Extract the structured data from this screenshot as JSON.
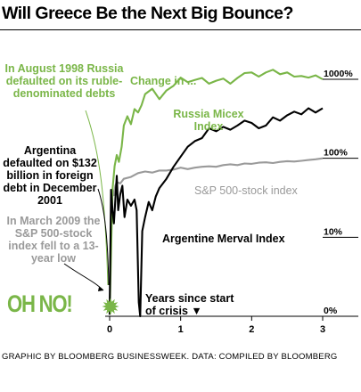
{
  "title": "Will Greece Be the Next Big Bounce?",
  "credit": "GRAPHIC BY BLOOMBERG BUSINESSWEEK. DATA: COMPILED BY BLOOMBERG",
  "annotations": {
    "russia": "In August 1998 Russia defaulted on its ruble-denominated debts",
    "argentina": "Argentina defaulted on  $132 billion in foreign debt in December 2001",
    "sp500": "In March 2009 the S&P 500-stock index fell to a 13-year low",
    "oh_no": "OH NO!"
  },
  "labels": {
    "change": "Change in ...",
    "micex": "Russia Micex Index",
    "sp500": "S&P 500-stock index",
    "merval": "Argentine Merval Index",
    "years": "Years since start of crisis ▼"
  },
  "colors": {
    "micex": "#7ab648",
    "sp500": "#9a9a9a",
    "merval": "#000000",
    "axis": "#000000"
  },
  "chart_data": {
    "type": "line",
    "title": "Will Greece Be the Next Big Bounce?",
    "xlabel": "Years since start of crisis",
    "ylabel": "Change in ...",
    "y_scale": "log",
    "xlim": [
      0,
      3
    ],
    "ylim": [
      1,
      1000
    ],
    "x_ticks": [
      0,
      1,
      2,
      3
    ],
    "y_ticks": [
      {
        "value": 1,
        "label": "0%"
      },
      {
        "value": 10,
        "label": "10%"
      },
      {
        "value": 100,
        "label": "100%"
      },
      {
        "value": 1000,
        "label": "1000%"
      }
    ],
    "grid": false,
    "series": [
      {
        "name": "Russia Micex Index",
        "color": "#7ab648",
        "x": [
          0,
          0.04,
          0.07,
          0.1,
          0.13,
          0.17,
          0.2,
          0.25,
          0.3,
          0.35,
          0.4,
          0.45,
          0.5,
          0.6,
          0.7,
          0.8,
          0.9,
          1.0,
          1.1,
          1.2,
          1.3,
          1.4,
          1.5,
          1.6,
          1.7,
          1.8,
          1.9,
          2.0,
          2.1,
          2.2,
          2.3,
          2.4,
          2.5,
          2.6,
          2.7,
          2.8,
          2.9,
          3.0
        ],
        "y": [
          1.05,
          40,
          80,
          110,
          90,
          140,
          260,
          340,
          270,
          420,
          380,
          470,
          650,
          760,
          560,
          720,
          830,
          1050,
          920,
          980,
          1040,
          880,
          960,
          1020,
          880,
          1040,
          1200,
          1220,
          1080,
          1220,
          1320,
          1160,
          1220,
          1080,
          1100,
          1050,
          1120,
          1000
        ]
      },
      {
        "name": "S&P 500-stock index",
        "color": "#9a9a9a",
        "x": [
          0,
          0.02,
          0.04,
          0.06,
          0.08,
          0.1,
          0.15,
          0.2,
          0.3,
          0.4,
          0.5,
          0.6,
          0.7,
          0.8,
          0.9,
          1.0,
          1.1,
          1.2,
          1.3,
          1.4,
          1.5,
          1.6,
          1.7,
          1.8,
          1.9,
          2.0,
          2.1,
          2.2,
          2.3,
          2.4,
          2.5,
          2.6,
          2.7,
          2.8,
          2.9,
          3.0
        ],
        "y": [
          1.05,
          25,
          40,
          34,
          45,
          50,
          48,
          55,
          58,
          65,
          68,
          66,
          70,
          70,
          72,
          76,
          73,
          76,
          78,
          79,
          78,
          82,
          84,
          82,
          86,
          85,
          88,
          89,
          87,
          90,
          92,
          91,
          93,
          95,
          97,
          100
        ]
      },
      {
        "name": "Argentine Merval Index",
        "color": "#000000",
        "x": [
          0,
          0.02,
          0.04,
          0.06,
          0.08,
          0.1,
          0.12,
          0.15,
          0.18,
          0.21,
          0.25,
          0.3,
          0.35,
          0.38,
          0.41,
          0.43,
          0.46,
          0.5,
          0.55,
          0.6,
          0.65,
          0.7,
          0.8,
          0.9,
          1.0,
          1.1,
          1.2,
          1.3,
          1.4,
          1.5,
          1.6,
          1.7,
          1.8,
          1.9,
          2.0,
          2.1,
          2.2,
          2.3,
          2.4,
          2.5,
          2.6,
          2.7,
          2.8,
          2.9,
          3.0
        ],
        "y": [
          1.05,
          40,
          22,
          15,
          30,
          60,
          22,
          35,
          45,
          18,
          30,
          25,
          30,
          22,
          1.5,
          1.0,
          12,
          18,
          28,
          22,
          33,
          42,
          55,
          78,
          105,
          140,
          165,
          180,
          240,
          220,
          250,
          230,
          260,
          300,
          280,
          240,
          260,
          330,
          300,
          350,
          390,
          360,
          430,
          380,
          430
        ]
      }
    ]
  }
}
